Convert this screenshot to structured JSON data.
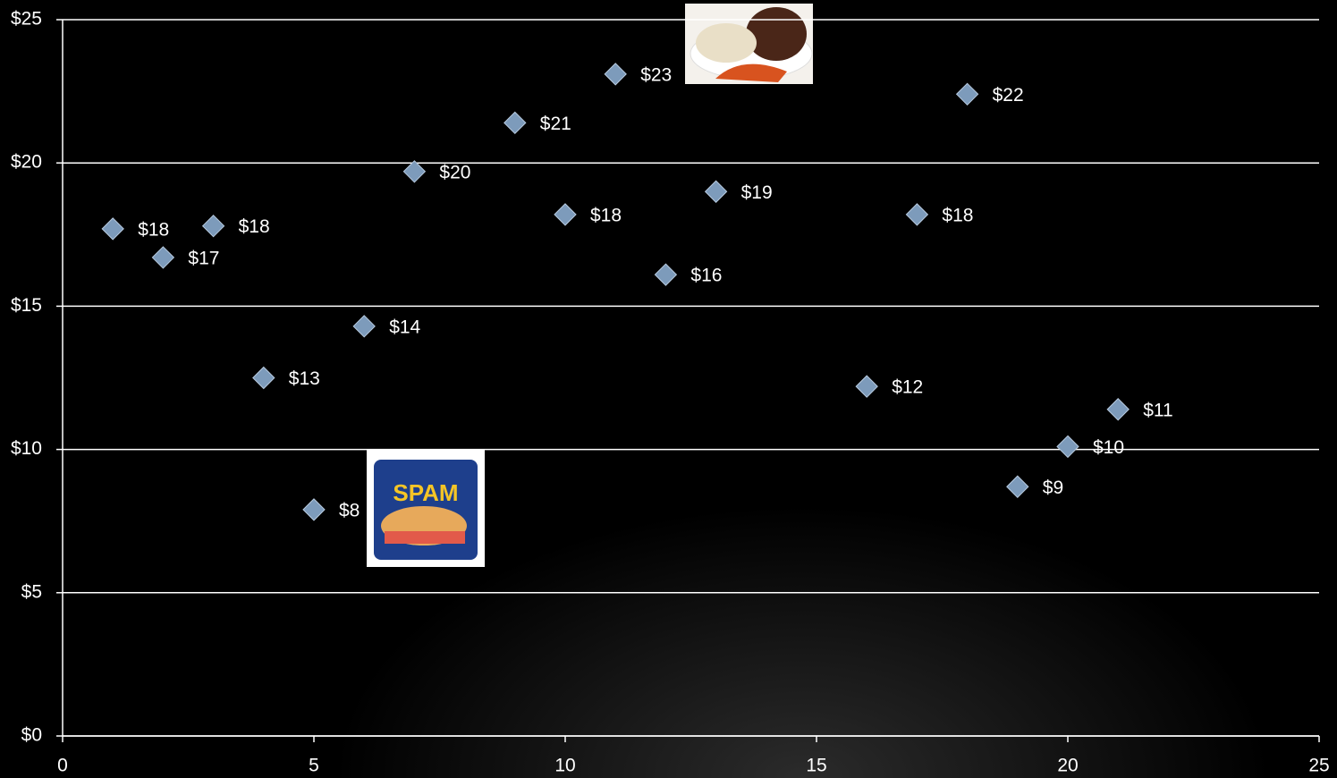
{
  "chart_data": {
    "type": "scatter",
    "x": [
      1,
      2,
      3,
      4,
      5,
      6,
      7,
      9,
      10,
      11,
      12,
      13,
      16,
      17,
      18,
      19,
      20,
      21
    ],
    "values": [
      17.7,
      16.7,
      17.8,
      12.5,
      7.9,
      14.3,
      19.7,
      21.4,
      18.2,
      23.1,
      16.1,
      19.0,
      12.2,
      18.2,
      22.4,
      8.7,
      10.1,
      11.4
    ],
    "value_labels": [
      "$18",
      "$17",
      "$18",
      "$13",
      "$8",
      "$14",
      "$20",
      "$21",
      "$18",
      "$23",
      "$16",
      "$19",
      "$12",
      "$18",
      "$22",
      "$9",
      "$10",
      "$11"
    ],
    "color": "#7d9bbb",
    "xlim": [
      0,
      25
    ],
    "ylim": [
      0,
      25
    ],
    "xticks": [
      0,
      5,
      10,
      15,
      20,
      25
    ],
    "yticks": [
      {
        "value": 0,
        "label": "$0"
      },
      {
        "value": 5,
        "label": "$5"
      },
      {
        "value": 10,
        "label": "$10"
      },
      {
        "value": 15,
        "label": "$15"
      },
      {
        "value": 20,
        "label": "$20"
      },
      {
        "value": 25,
        "label": "$25"
      }
    ],
    "grid": true,
    "annotations": [
      "SPAM"
    ]
  }
}
